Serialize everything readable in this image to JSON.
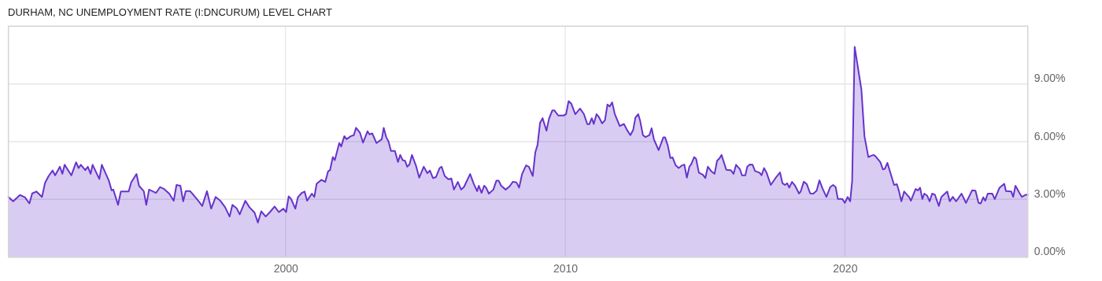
{
  "chart_data": {
    "type": "area",
    "title": "DURHAM, NC UNEMPLOYMENT RATE (I:DNCURUM) LEVEL CHART",
    "x": [
      1990.09,
      1990.26,
      1990.5,
      1990.68,
      1990.84,
      1990.94,
      1991.09,
      1991.29,
      1991.4,
      1991.53,
      1991.67,
      1991.76,
      1991.93,
      1992.02,
      1992.1,
      1992.34,
      1992.51,
      1992.6,
      1992.68,
      1992.84,
      1992.93,
      1993.03,
      1993.1,
      1993.34,
      1993.43,
      1993.68,
      1993.78,
      1993.84,
      1994.01,
      1994.11,
      1994.39,
      1994.48,
      1994.67,
      1994.76,
      1994.93,
      1995.02,
      1995.12,
      1995.37,
      1995.51,
      1995.66,
      1995.84,
      1996.0,
      1996.1,
      1996.24,
      1996.34,
      1996.43,
      1996.59,
      1996.83,
      1997.02,
      1997.19,
      1997.34,
      1997.5,
      1997.67,
      1997.84,
      1998.0,
      1998.1,
      1998.26,
      1998.36,
      1998.56,
      1998.71,
      1998.89,
      1999.01,
      1999.13,
      1999.29,
      1999.45,
      1999.61,
      1999.76,
      1999.92,
      2000.02,
      2000.11,
      2000.2,
      2000.35,
      2000.44,
      2000.58,
      2000.68,
      2000.77,
      2000.94,
      2001.03,
      2001.11,
      2001.28,
      2001.42,
      2001.52,
      2001.59,
      2001.69,
      2001.76,
      2001.92,
      2001.99,
      2002.1,
      2002.18,
      2002.34,
      2002.44,
      2002.52,
      2002.66,
      2002.77,
      2002.93,
      2003.0,
      2003.1,
      2003.25,
      2003.44,
      2003.51,
      2003.6,
      2003.68,
      2003.77,
      2003.91,
      2004.02,
      2004.1,
      2004.19,
      2004.27,
      2004.35,
      2004.43,
      2004.52,
      2004.66,
      2004.78,
      2004.94,
      2005.07,
      2005.16,
      2005.27,
      2005.38,
      2005.51,
      2005.58,
      2005.69,
      2005.82,
      2005.93,
      2006.02,
      2006.16,
      2006.28,
      2006.38,
      2006.6,
      2006.73,
      2006.85,
      2006.91,
      2007.01,
      2007.1,
      2007.17,
      2007.27,
      2007.43,
      2007.54,
      2007.62,
      2007.71,
      2007.87,
      2008.01,
      2008.13,
      2008.26,
      2008.35,
      2008.46,
      2008.6,
      2008.7,
      2008.84,
      2008.93,
      2009.01,
      2009.1,
      2009.19,
      2009.33,
      2009.42,
      2009.54,
      2009.61,
      2009.75,
      2009.94,
      2010.03,
      2010.12,
      2010.22,
      2010.36,
      2010.53,
      2010.67,
      2010.79,
      2010.86,
      2010.95,
      2011.02,
      2011.12,
      2011.2,
      2011.32,
      2011.42,
      2011.51,
      2011.59,
      2011.68,
      2011.77,
      2011.95,
      2012.1,
      2012.21,
      2012.33,
      2012.43,
      2012.51,
      2012.61,
      2012.68,
      2012.78,
      2012.87,
      2013.01,
      2013.09,
      2013.17,
      2013.34,
      2013.51,
      2013.57,
      2013.67,
      2013.76,
      2013.84,
      2013.95,
      2014.06,
      2014.18,
      2014.26,
      2014.35,
      2014.44,
      2014.51,
      2014.61,
      2014.68,
      2014.78,
      2014.92,
      2015.01,
      2015.1,
      2015.22,
      2015.34,
      2015.43,
      2015.52,
      2015.59,
      2015.76,
      2015.92,
      2016.02,
      2016.11,
      2016.25,
      2016.32,
      2016.44,
      2016.51,
      2016.6,
      2016.7,
      2016.79,
      2016.95,
      2017.02,
      2017.11,
      2017.2,
      2017.35,
      2017.52,
      2017.68,
      2017.77,
      2017.86,
      2017.94,
      2018.01,
      2018.11,
      2018.22,
      2018.36,
      2018.42,
      2018.53,
      2018.64,
      2018.76,
      2018.87,
      2018.99,
      2019.09,
      2019.2,
      2019.34,
      2019.48,
      2019.58,
      2019.67,
      2019.75,
      2019.91,
      2020.0,
      2020.1,
      2020.19,
      2020.26,
      2020.35,
      2020.59,
      2020.7,
      2020.84,
      2020.94,
      2021.03,
      2021.11,
      2021.27,
      2021.36,
      2021.43,
      2021.52,
      2021.67,
      2021.76,
      2021.86,
      2021.93,
      2022.02,
      2022.12,
      2022.3,
      2022.36,
      2022.53,
      2022.61,
      2022.69,
      2022.77,
      2022.84,
      2022.94,
      2023.03,
      2023.12,
      2023.22,
      2023.36,
      2023.45,
      2023.66,
      2023.75,
      2023.86,
      2023.98,
      2024.17,
      2024.33,
      2024.55,
      2024.67,
      2024.78,
      2024.86,
      2024.95,
      2025.02,
      2025.11,
      2025.27,
      2025.36,
      2025.53,
      2025.7,
      2025.76,
      2025.95,
      2026.02,
      2026.1,
      2026.24,
      2026.33,
      2026.47,
      2026.54
    ],
    "series": [
      {
        "color": "#6633cc",
        "values": [
          3.13,
          2.9,
          3.23,
          3.11,
          2.79,
          3.31,
          3.41,
          3.13,
          3.86,
          4.22,
          4.5,
          4.25,
          4.7,
          4.33,
          4.8,
          4.25,
          4.93,
          4.63,
          4.8,
          4.52,
          4.7,
          4.33,
          4.8,
          4.06,
          4.8,
          3.98,
          3.47,
          3.51,
          2.72,
          3.41,
          3.41,
          3.88,
          4.32,
          3.71,
          3.43,
          2.72,
          3.51,
          3.34,
          3.64,
          3.54,
          3.3,
          2.93,
          3.75,
          3.71,
          2.9,
          3.43,
          3.43,
          3.02,
          2.66,
          3.43,
          2.52,
          3.13,
          2.93,
          2.59,
          2.11,
          2.72,
          2.52,
          2.22,
          2.93,
          2.59,
          2.32,
          1.8,
          2.38,
          2.11,
          2.36,
          2.63,
          2.34,
          2.52,
          2.34,
          3.16,
          3.02,
          2.52,
          3.11,
          3.34,
          3.41,
          2.93,
          3.3,
          3.13,
          3.81,
          4.02,
          3.91,
          4.46,
          4.52,
          5.2,
          5.04,
          5.93,
          5.75,
          6.29,
          6.13,
          6.29,
          6.34,
          6.72,
          6.47,
          5.95,
          6.54,
          6.38,
          6.43,
          5.93,
          6.13,
          6.72,
          6.23,
          6.02,
          5.52,
          5.52,
          4.95,
          5.31,
          5.04,
          5.01,
          4.7,
          4.81,
          5.31,
          4.77,
          4.13,
          4.7,
          4.36,
          4.5,
          4.11,
          4.16,
          4.63,
          4.7,
          4.22,
          4.05,
          4.09,
          3.51,
          3.91,
          3.51,
          3.65,
          4.32,
          3.81,
          3.43,
          3.71,
          3.34,
          3.71,
          3.61,
          3.3,
          3.51,
          3.98,
          3.98,
          3.71,
          3.51,
          3.68,
          3.92,
          3.88,
          3.61,
          4.33,
          4.77,
          4.7,
          4.22,
          5.45,
          5.83,
          6.98,
          7.22,
          6.57,
          7.19,
          7.63,
          7.63,
          7.36,
          7.36,
          7.43,
          8.11,
          7.97,
          7.43,
          7.72,
          7.43,
          6.91,
          6.91,
          7.22,
          6.92,
          7.43,
          7.29,
          6.95,
          7.11,
          7.93,
          7.83,
          8.04,
          7.45,
          6.81,
          6.92,
          6.61,
          6.34,
          6.61,
          7.25,
          7.43,
          7.08,
          6.34,
          6.24,
          6.34,
          6.7,
          6.13,
          5.56,
          6.23,
          6.23,
          5.79,
          5.15,
          5.18,
          4.77,
          4.63,
          4.77,
          4.81,
          4.13,
          4.7,
          4.84,
          5.2,
          5.11,
          4.39,
          4.29,
          4.11,
          4.7,
          4.47,
          4.33,
          5.01,
          5.14,
          5.31,
          4.54,
          4.52,
          4.33,
          4.8,
          4.56,
          4.25,
          4.25,
          4.7,
          4.81,
          4.8,
          4.47,
          4.39,
          4.25,
          4.63,
          4.39,
          3.75,
          4.11,
          4.4,
          3.84,
          3.75,
          3.84,
          3.61,
          3.91,
          3.71,
          3.31,
          3.41,
          3.92,
          3.79,
          3.31,
          3.3,
          3.45,
          3.99,
          3.57,
          3.13,
          3.65,
          3.75,
          3.64,
          3.02,
          3.02,
          2.82,
          3.13,
          2.9,
          3.95,
          10.93,
          8.72,
          6.29,
          5.2,
          5.27,
          5.31,
          5.22,
          4.93,
          4.56,
          4.59,
          4.9,
          4.18,
          3.75,
          3.79,
          3.45,
          2.9,
          3.41,
          3.11,
          2.93,
          3.54,
          3.47,
          3.61,
          3.02,
          3.3,
          3.2,
          2.9,
          3.3,
          3.24,
          2.66,
          3.13,
          3.41,
          2.9,
          3.13,
          2.9,
          3.3,
          2.82,
          3.47,
          3.45,
          2.82,
          2.79,
          3.11,
          2.93,
          3.3,
          3.3,
          3.02,
          3.61,
          3.81,
          3.43,
          3.41,
          3.13,
          3.71,
          3.34,
          3.13,
          3.24,
          3.24
        ]
      }
    ],
    "xlim": [
      1990.09,
      2026.54
    ],
    "xticks": [
      2000,
      2010,
      2020
    ],
    "ylim": [
      0,
      12
    ],
    "yticks": [
      {
        "value": 0,
        "label": "0.00%"
      },
      {
        "value": 3,
        "label": "3.00%"
      },
      {
        "value": 6,
        "label": "6.00%"
      },
      {
        "value": 9,
        "label": "9.00%"
      }
    ],
    "grid": true
  }
}
